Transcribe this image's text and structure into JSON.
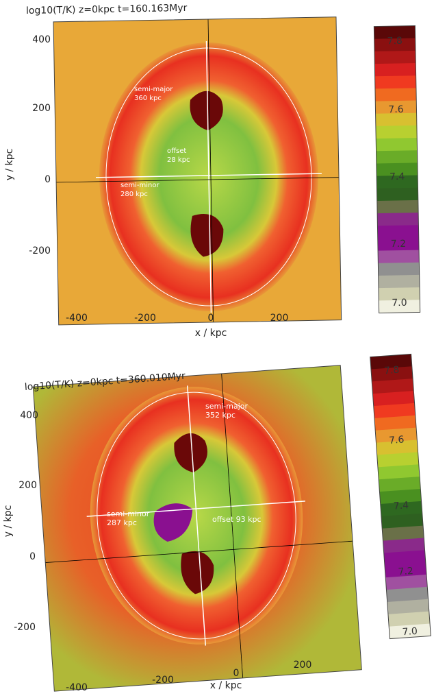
{
  "panels": [
    {
      "title": "log10(T/K)  z=0kpc  t=160.163Myr",
      "x_label": "x / kpc",
      "y_label": "y / kpc",
      "x_ticks": [
        "-400",
        "-200",
        "0",
        "200"
      ],
      "y_ticks": [
        "400",
        "200",
        "0",
        "-200"
      ],
      "colorbar_ticks": [
        "7.8",
        "7.6",
        "7.4",
        "7.2",
        "7.0"
      ],
      "annotations": [
        [
          "semi-major",
          "360 kpc"
        ],
        [
          "offset",
          "28 kpc"
        ],
        [
          "semi-minor",
          "280 kpc"
        ]
      ]
    },
    {
      "title": "log10(T/K)  z=0kpc  t=360.010Myr",
      "x_label": "x / kpc",
      "y_label": "y / kpc",
      "x_ticks": [
        "-400",
        "-200",
        "0",
        "200"
      ],
      "y_ticks": [
        "400",
        "200",
        "0",
        "-200"
      ],
      "colorbar_ticks": [
        "7.8",
        "7.6",
        "7.4",
        "7.2",
        "7.0"
      ],
      "annotations": [
        [
          "semi-major",
          "352 kpc"
        ],
        [
          "semi-minor",
          "287 kpc"
        ],
        [
          "offset  93 kpc"
        ]
      ]
    }
  ]
}
